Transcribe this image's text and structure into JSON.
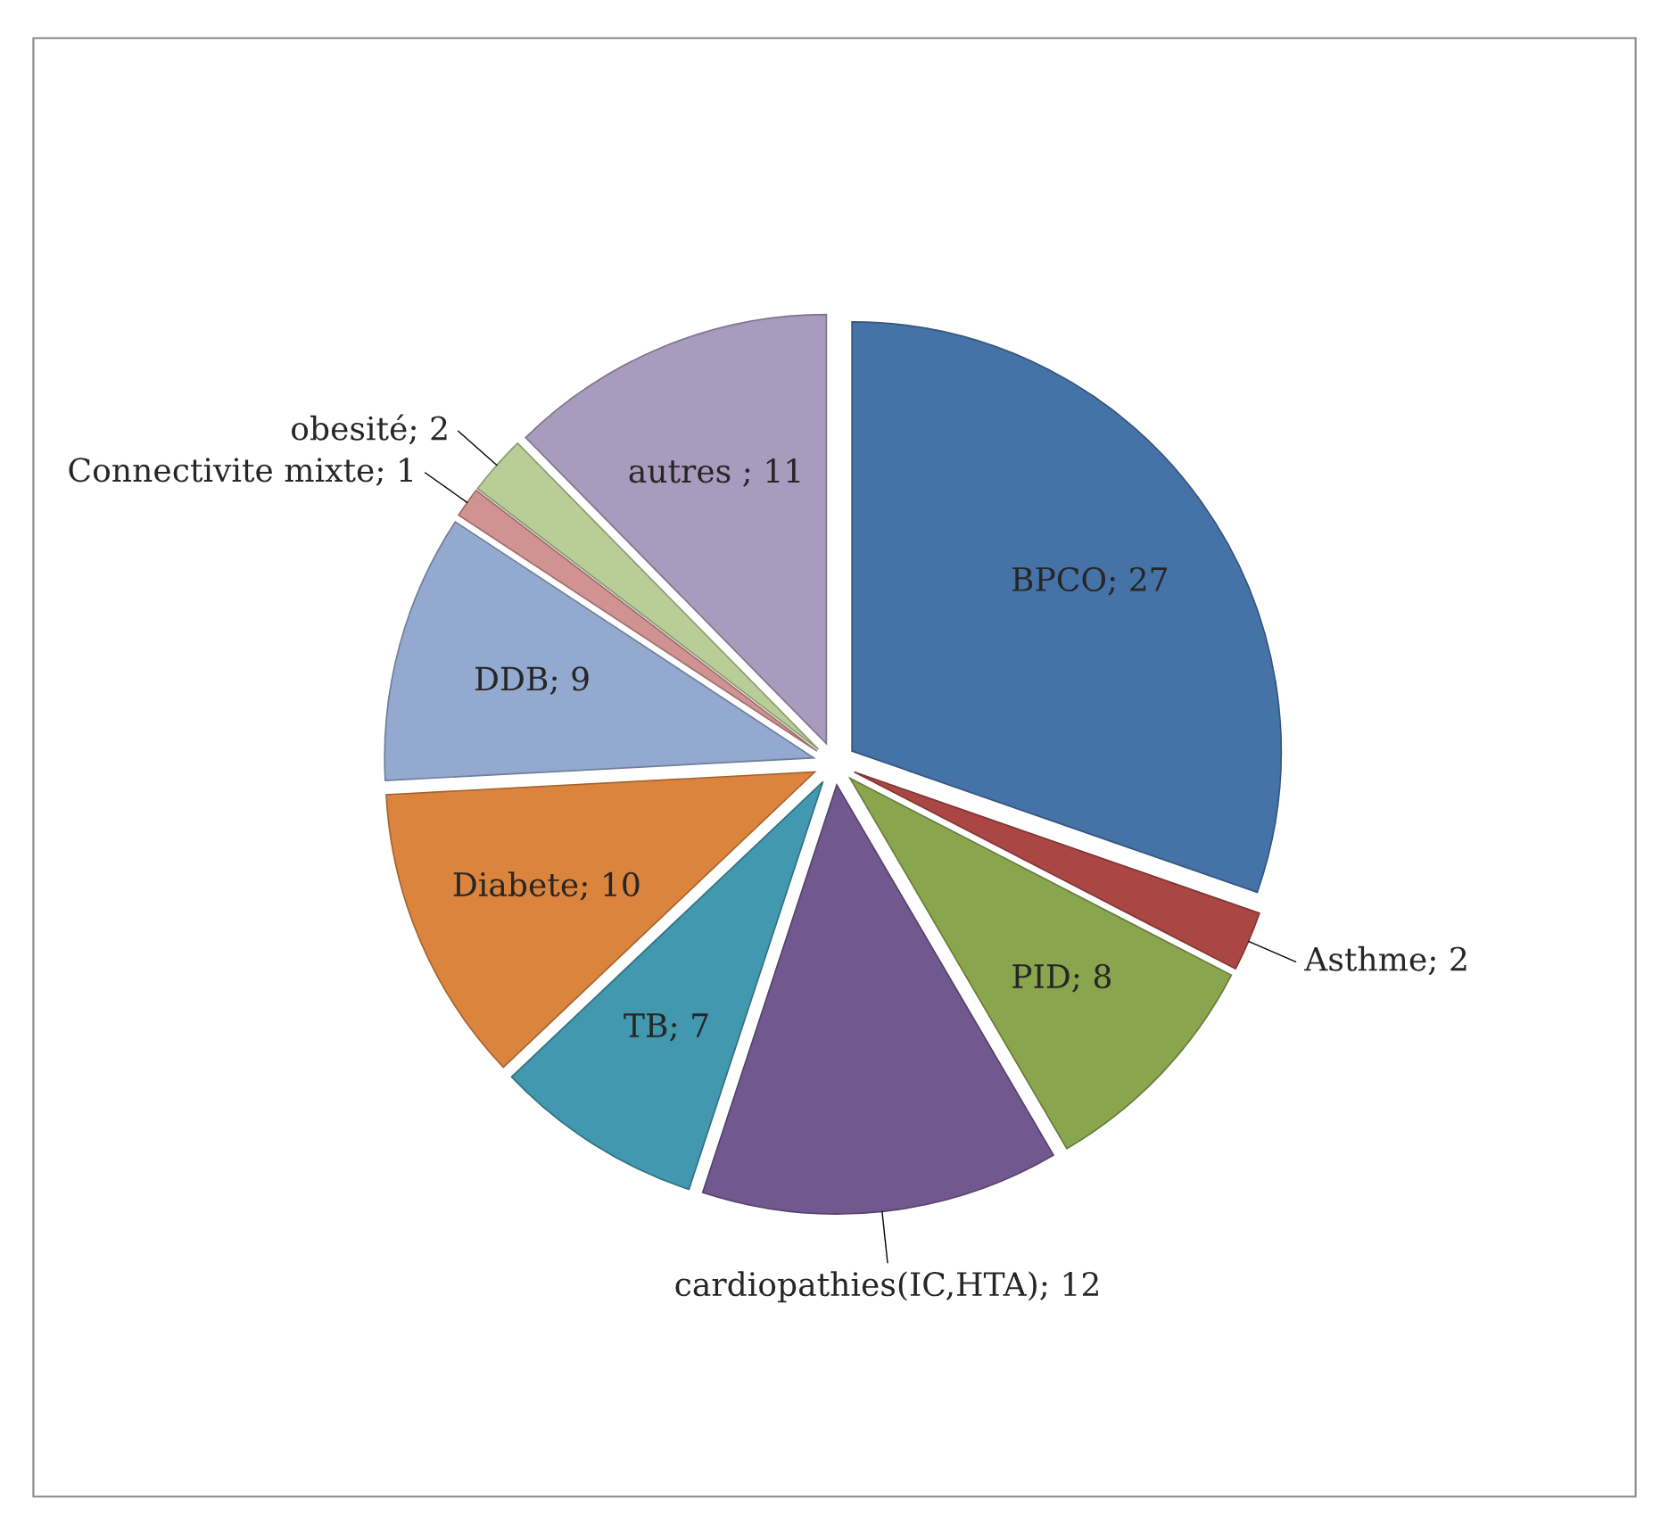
{
  "chart_data": {
    "type": "pie",
    "categories": [
      "BPCO; 27",
      "Asthme; 2",
      "PID; 8",
      "cardiopathies(IC,HTA); 12",
      "TB; 7",
      "Diabete; 10",
      "DDB; 9",
      "Connectivite mixte; 1",
      "obesité; 2",
      "autres ; 11"
    ],
    "values": [
      27,
      2,
      8,
      12,
      7,
      10,
      9,
      1,
      2,
      11
    ],
    "colors": [
      "#4572a7",
      "#aa4643",
      "#89a54e",
      "#71588f",
      "#4198af",
      "#db843d",
      "#93a9cf",
      "#d19392",
      "#b9cd96",
      "#a99bbd"
    ]
  }
}
